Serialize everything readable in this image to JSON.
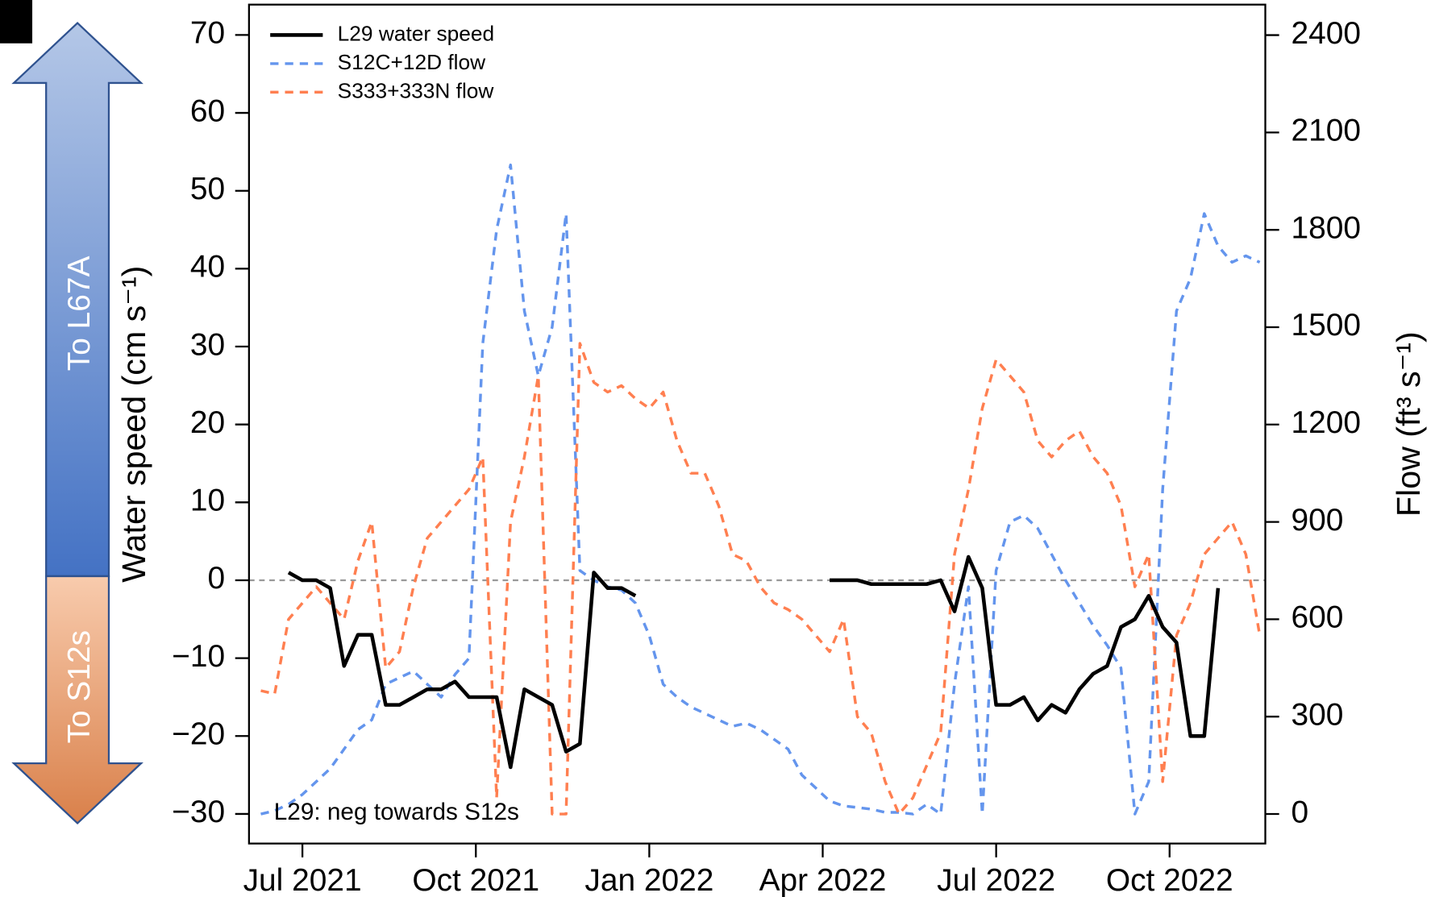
{
  "chart_data": {
    "type": "line",
    "y_label": "Water speed (cm s⁻¹)",
    "y2_label": "Flow (ft³ s⁻¹)",
    "annotation": "L29: neg towards S12s",
    "arrow_labels": [
      "To L67A",
      "To S12s"
    ],
    "hline": 0,
    "x": [
      2021.44,
      2021.46,
      2021.48,
      2021.5,
      2021.52,
      2021.54,
      2021.56,
      2021.58,
      2021.6,
      2021.62,
      2021.64,
      2021.66,
      2021.68,
      2021.7,
      2021.72,
      2021.74,
      2021.76,
      2021.78,
      2021.8,
      2021.82,
      2021.84,
      2021.86,
      2021.88,
      2021.9,
      2021.92,
      2021.94,
      2021.96,
      2021.98,
      2022.0,
      2022.02,
      2022.04,
      2022.06,
      2022.08,
      2022.1,
      2022.12,
      2022.14,
      2022.16,
      2022.18,
      2022.2,
      2022.22,
      2022.24,
      2022.26,
      2022.28,
      2022.3,
      2022.32,
      2022.34,
      2022.36,
      2022.38,
      2022.4,
      2022.42,
      2022.44,
      2022.46,
      2022.48,
      2022.5,
      2022.52,
      2022.54,
      2022.56,
      2022.58,
      2022.6,
      2022.62,
      2022.64,
      2022.66,
      2022.68,
      2022.7,
      2022.72,
      2022.74,
      2022.76,
      2022.78,
      2022.8,
      2022.82,
      2022.84,
      2022.86,
      2022.88
    ],
    "series": [
      {
        "name": "L29 water speed",
        "color": "#000000",
        "dashed": false,
        "axis": "y",
        "values": [
          null,
          null,
          1,
          0,
          0,
          -1,
          -11,
          -7,
          -7,
          -16,
          -16,
          -15,
          -14,
          -14,
          -13,
          -15,
          -15,
          -15,
          -24,
          -14,
          -15,
          -16,
          -22,
          -21,
          1,
          -1,
          -1,
          -2,
          null,
          null,
          null,
          null,
          null,
          null,
          null,
          null,
          null,
          null,
          null,
          null,
          null,
          0,
          0,
          0,
          -0.5,
          -0.5,
          -0.5,
          -0.5,
          -0.5,
          0,
          -4,
          3,
          -1,
          -16,
          -16,
          -15,
          -18,
          -16,
          -17,
          -14,
          -12,
          -11,
          -6,
          -5,
          -2,
          -6,
          -8,
          -20,
          -20,
          -1,
          null,
          null,
          null
        ]
      },
      {
        "name": "S12C+12D flow",
        "color": "#6495ed",
        "dashed": true,
        "axis": "y2",
        "values": [
          0,
          10,
          30,
          60,
          100,
          140,
          200,
          260,
          290,
          400,
          420,
          440,
          400,
          360,
          430,
          480,
          1450,
          1800,
          2000,
          1550,
          1350,
          1500,
          1850,
          750,
          720,
          700,
          690,
          650,
          550,
          400,
          360,
          330,
          310,
          290,
          270,
          280,
          260,
          230,
          200,
          120,
          80,
          40,
          25,
          20,
          15,
          5,
          5,
          0,
          30,
          0,
          400,
          700,
          0,
          750,
          900,
          920,
          880,
          800,
          720,
          650,
          580,
          520,
          450,
          0,
          100,
          1000,
          1550,
          1650,
          1850,
          1750,
          1700,
          1720,
          1700
        ]
      },
      {
        "name": "S333+333N flow",
        "color": "#ff7f50",
        "dashed": true,
        "axis": "y2",
        "values": [
          380,
          370,
          600,
          650,
          700,
          650,
          600,
          780,
          900,
          450,
          500,
          700,
          850,
          900,
          950,
          1000,
          1100,
          50,
          900,
          1100,
          1350,
          0,
          0,
          1450,
          1330,
          1300,
          1320,
          1280,
          1250,
          1300,
          1150,
          1050,
          1050,
          950,
          800,
          780,
          700,
          650,
          630,
          600,
          550,
          500,
          600,
          300,
          250,
          100,
          0,
          50,
          150,
          250,
          800,
          1000,
          1250,
          1400,
          1350,
          1300,
          1150,
          1100,
          1150,
          1180,
          1100,
          1050,
          950,
          700,
          800,
          100,
          550,
          650,
          800,
          850,
          900,
          800,
          550
        ]
      }
    ],
    "xlim": [
      2021.423,
      2022.888
    ],
    "xticks": [
      {
        "value": 2021.5,
        "label": "Jul 2021"
      },
      {
        "value": 2021.75,
        "label": "Oct 2021"
      },
      {
        "value": 2022.0,
        "label": "Jan 2022"
      },
      {
        "value": 2022.25,
        "label": "Apr 2022"
      },
      {
        "value": 2022.5,
        "label": "Jul 2022"
      },
      {
        "value": 2022.75,
        "label": "Oct 2022"
      }
    ],
    "ylim": [
      -33.8,
      73.9
    ],
    "yticks": [
      {
        "value": -30,
        "label": "−30"
      },
      {
        "value": -20,
        "label": "−20"
      },
      {
        "value": -10,
        "label": "−10"
      },
      0,
      10,
      20,
      30,
      40,
      50,
      60,
      70
    ],
    "y2lim": [
      -91,
      2494
    ],
    "y2ticks": [
      0,
      300,
      600,
      900,
      1200,
      1500,
      1800,
      2100,
      2400
    ],
    "legend": "top-left"
  }
}
